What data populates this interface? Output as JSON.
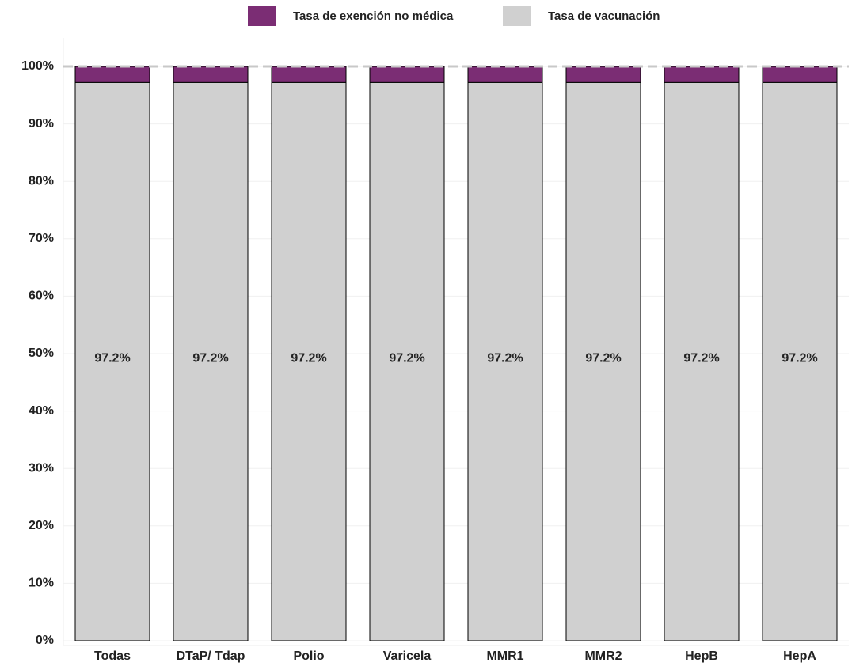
{
  "chart_data": {
    "type": "stacked-bar",
    "categories": [
      "Todas",
      "DTaP/ Tdap",
      "Polio",
      "Varicela",
      "MMR1",
      "MMR2",
      "HepB",
      "HepA"
    ],
    "series": [
      {
        "name": "Tasa de exención no médica",
        "color": "#7b2d74",
        "values": [
          2.8,
          2.8,
          2.8,
          2.8,
          2.8,
          2.8,
          2.8,
          2.8
        ]
      },
      {
        "name": "Tasa de vacunación",
        "color": "#d0d0d0",
        "values": [
          97.2,
          97.2,
          97.2,
          97.2,
          97.2,
          97.2,
          97.2,
          97.2
        ],
        "value_labels": [
          "97.2%",
          "97.2%",
          "97.2%",
          "97.2%",
          "97.2%",
          "97.2%",
          "97.2%",
          "97.2%"
        ]
      }
    ],
    "ylim": [
      0,
      100
    ],
    "yticks": [
      {
        "value": 0,
        "label": "0%"
      },
      {
        "value": 10,
        "label": "10%"
      },
      {
        "value": 20,
        "label": "20%"
      },
      {
        "value": 30,
        "label": "30%"
      },
      {
        "value": 40,
        "label": "40%"
      },
      {
        "value": 50,
        "label": "50%"
      },
      {
        "value": 60,
        "label": "60%"
      },
      {
        "value": 70,
        "label": "70%"
      },
      {
        "value": 80,
        "label": "80%"
      },
      {
        "value": 90,
        "label": "90%"
      },
      {
        "value": 100,
        "label": "100%"
      }
    ],
    "grid": true,
    "reference_line": 100
  }
}
